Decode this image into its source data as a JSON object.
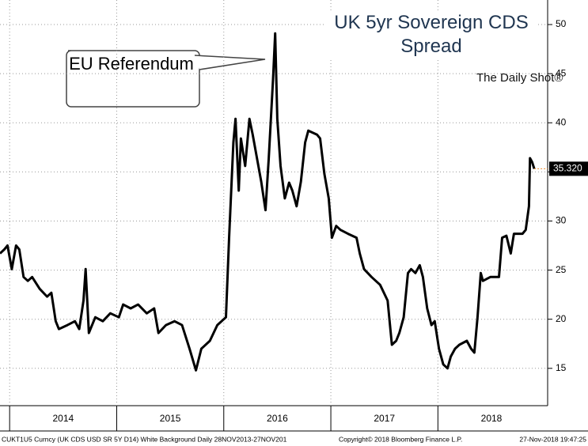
{
  "chart_data": {
    "type": "line",
    "title": "UK 5yr Sovereign CDS Spread",
    "annotation": "EU Referendum",
    "watermark": "The Daily Shot®",
    "footer": [
      "CUKT1U5 Curncy (UK CDS USD SR 5Y D14) White Background  Daily 28NOV2013-27NOV201",
      "Copyright© 2018 Bloomberg Finance L.P.",
      "27-Nov-2018 19:47:25"
    ],
    "x": [
      2013.91,
      2013.95,
      2013.98,
      2014.02,
      2014.06,
      2014.09,
      2014.13,
      2014.17,
      2014.21,
      2014.28,
      2014.35,
      2014.39,
      2014.43,
      2014.46,
      2014.54,
      2014.61,
      2014.65,
      2014.69,
      2014.71,
      2014.74,
      2014.8,
      2014.87,
      2014.94,
      2015.02,
      2015.06,
      2015.13,
      2015.2,
      2015.28,
      2015.35,
      2015.39,
      2015.46,
      2015.54,
      2015.61,
      2015.68,
      2015.74,
      2015.79,
      2015.87,
      2015.94,
      2016.02,
      2016.05,
      2016.09,
      2016.11,
      2016.14,
      2016.16,
      2016.2,
      2016.24,
      2016.27,
      2016.31,
      2016.35,
      2016.39,
      2016.42,
      2016.46,
      2016.48,
      2016.5,
      2016.53,
      2016.57,
      2016.61,
      2016.64,
      2016.68,
      2016.72,
      2016.76,
      2016.79,
      2016.87,
      2016.9,
      2016.94,
      2016.98,
      2017.01,
      2017.05,
      2017.09,
      2017.16,
      2017.24,
      2017.27,
      2017.31,
      2017.38,
      2017.46,
      2017.53,
      2017.57,
      2017.61,
      2017.64,
      2017.68,
      2017.72,
      2017.75,
      2017.79,
      2017.83,
      2017.86,
      2017.9,
      2017.94,
      2017.97,
      2018.01,
      2018.05,
      2018.09,
      2018.12,
      2018.16,
      2018.2,
      2018.27,
      2018.31,
      2018.34,
      2018.37,
      2018.4,
      2018.42,
      2018.49,
      2018.57,
      2018.6,
      2018.64,
      2018.68,
      2018.71,
      2018.79,
      2018.82,
      2018.85,
      2018.86,
      2018.88,
      2018.9
    ],
    "series": [
      {
        "name": "UK 5yr Sovereign CDS",
        "color": "#000000",
        "values": [
          26.7,
          27.1,
          27.5,
          25.1,
          27.5,
          27.1,
          24.3,
          23.9,
          24.3,
          23.1,
          22.3,
          22.7,
          19.8,
          19.0,
          19.4,
          19.8,
          19.0,
          21.9,
          25.1,
          18.6,
          20.2,
          19.8,
          20.6,
          20.2,
          21.5,
          21.1,
          21.5,
          20.6,
          21.1,
          18.6,
          19.4,
          19.8,
          19.4,
          17.0,
          14.8,
          17.0,
          17.8,
          19.4,
          20.2,
          28.3,
          38.0,
          40.4,
          33.1,
          38.4,
          35.6,
          40.4,
          38.8,
          36.4,
          34.0,
          31.1,
          36.4,
          44.4,
          49.1,
          40.4,
          35.6,
          32.3,
          33.9,
          33.1,
          31.5,
          34.0,
          38.0,
          39.2,
          38.8,
          38.4,
          34.8,
          32.3,
          28.3,
          29.5,
          29.1,
          28.7,
          28.3,
          26.7,
          25.1,
          24.3,
          23.5,
          21.9,
          17.4,
          17.8,
          18.6,
          20.2,
          24.7,
          25.1,
          24.7,
          25.5,
          24.3,
          21.1,
          19.4,
          19.8,
          17.0,
          15.4,
          15.0,
          16.2,
          17.0,
          17.4,
          17.8,
          17.0,
          16.6,
          20.2,
          24.7,
          23.9,
          24.3,
          24.3,
          28.3,
          28.5,
          26.7,
          28.7,
          28.7,
          29.1,
          31.5,
          36.4,
          36.0,
          35.32
        ]
      }
    ],
    "current_value": {
      "value": 35.32,
      "label": "35.320",
      "color": "#f08c28"
    },
    "xlim": [
      2013.91,
      2019.01
    ],
    "xticks": [
      {
        "value": 2014.5,
        "label": "2014"
      },
      {
        "value": 2015.5,
        "label": "2015"
      },
      {
        "value": 2016.5,
        "label": "2016"
      },
      {
        "value": 2017.5,
        "label": "2017"
      },
      {
        "value": 2018.5,
        "label": "2018"
      }
    ],
    "ylim": [
      11.2,
      52.5
    ],
    "yticks": [
      15,
      20,
      25,
      30,
      35,
      40,
      45,
      50
    ],
    "grid": true
  }
}
